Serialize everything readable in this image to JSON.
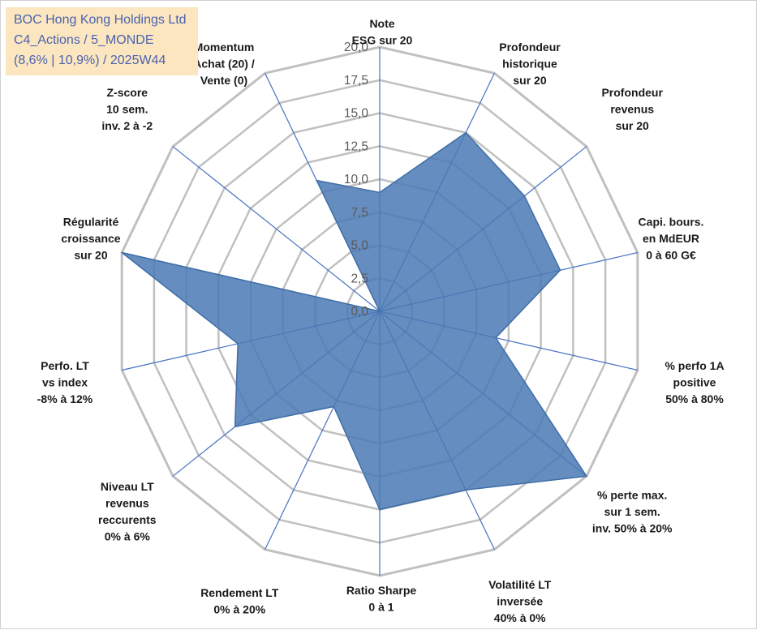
{
  "title_box": {
    "line1": "BOC Hong Kong Holdings Ltd",
    "line2": "C4_Actions / 5_MONDE",
    "line3": "(8,6% | 10,9%) / 2025W44"
  },
  "colors": {
    "fill": "#4a79b4",
    "stroke": "#3f6ea6",
    "grid": "#c0c0c0",
    "spoke": "#4472c4",
    "title_bg": "#fbe6c0",
    "title_text": "#4a63b0"
  },
  "chart_data": {
    "type": "radar",
    "title": "BOC Hong Kong Holdings Ltd",
    "axes": [
      [
        "Note",
        "ESG sur 20"
      ],
      [
        "Profondeur",
        "historique",
        "sur 20"
      ],
      [
        "Profondeur",
        "revenus",
        "sur 20"
      ],
      [
        "Capi. bours.",
        "en MdEUR",
        "0 à 60 G€"
      ],
      [
        "% perfo 1A",
        "positive",
        "50% à 80%"
      ],
      [
        "% perte max.",
        "sur 1 sem.",
        "inv. 50% à 20%"
      ],
      [
        "Volatilité LT",
        "inversée",
        "40% à 0%"
      ],
      [
        "Ratio Sharpe",
        "0 à 1"
      ],
      [
        "Rendement LT",
        "0% à 20%"
      ],
      [
        "Niveau LT",
        "revenus",
        "reccurents",
        "0% à 6%"
      ],
      [
        "Perfo. LT",
        "vs index",
        "-8% à 12%"
      ],
      [
        "Régularité",
        "croissance",
        "sur 20"
      ],
      [
        "Z-score",
        "10 sem.",
        "inv. 2 à -2"
      ],
      [
        "Momentum",
        "Achat (20) /",
        "Vente (0)"
      ]
    ],
    "values": [
      9.0,
      15.0,
      14.0,
      14.0,
      9.0,
      20.0,
      15.0,
      15.0,
      8.0,
      14.0,
      11.0,
      20.0,
      0.0,
      11.0
    ],
    "rmin": 0,
    "rmax": 20,
    "ticks": [
      "0,0",
      "2,5",
      "5,0",
      "7,5",
      "10,0",
      "12,5",
      "15,0",
      "17,5",
      "20,0"
    ],
    "tick_values": [
      0,
      2.5,
      5,
      7.5,
      10,
      12.5,
      15,
      17.5,
      20
    ]
  }
}
